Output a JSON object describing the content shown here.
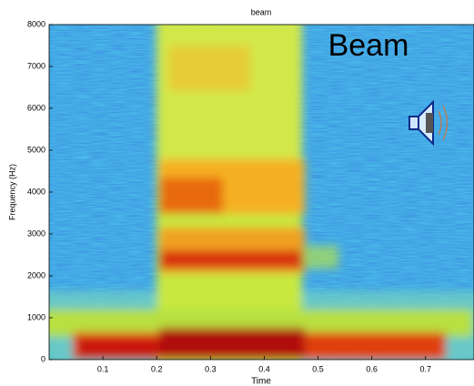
{
  "chart_data": {
    "type": "spectrogram",
    "title": "beam",
    "xlabel": "Time",
    "ylabel": "Frequency (Hz)",
    "annotation": "Beam",
    "xlim": [
      0,
      0.79
    ],
    "xticks": [
      0.1,
      0.2,
      0.3,
      0.4,
      0.5,
      0.6,
      0.7
    ],
    "ylim": [
      0,
      8000
    ],
    "yticks": [
      0,
      1000,
      2000,
      3000,
      4000,
      5000,
      6000,
      7000,
      8000
    ]
  }
}
